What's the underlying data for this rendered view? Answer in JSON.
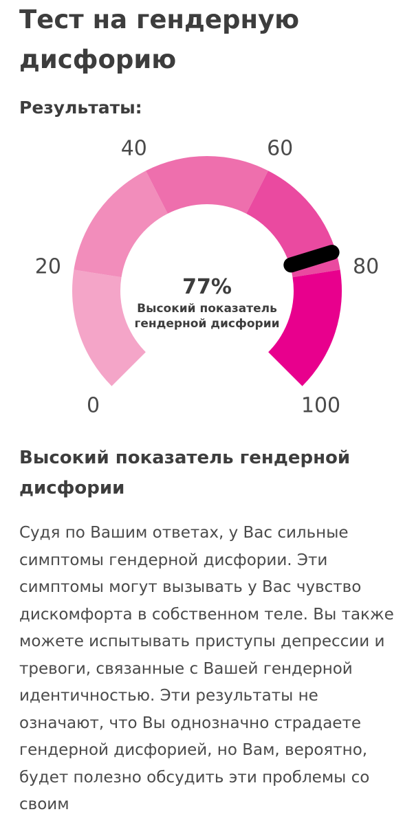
{
  "page": {
    "title": "Тест на гендерную дисфорию",
    "results_label": "Результаты:"
  },
  "gauge": {
    "value": 77,
    "value_label": "77%",
    "caption_line1": "Высокий показатель",
    "caption_line2": "гендерной дисфории",
    "min": 0,
    "max": 100,
    "tick_labels": [
      "0",
      "20",
      "40",
      "60",
      "80",
      "100"
    ],
    "segment_colors": [
      "#f4a5c8",
      "#f28dbb",
      "#ee6fad",
      "#ea4aa0",
      "#e8008d"
    ],
    "needle_color": "#000000"
  },
  "result": {
    "heading": "Высокий показатель гендерной дисфории",
    "description": "Судя по Вашим ответах, у Вас сильные симптомы гендерной дисфории. Эти симптомы могут вызывать у Вас чувство дискомфорта в собственном теле. Вы также можете испытывать приступы депрессии и тревоги, связанные с Вашей гендерной идентичностью. Эти результаты не означают, что Вы однозначно страдаете гендерной дисфорией, но Вам, вероятно, будет полезно обсудить эти проблемы со своим"
  }
}
